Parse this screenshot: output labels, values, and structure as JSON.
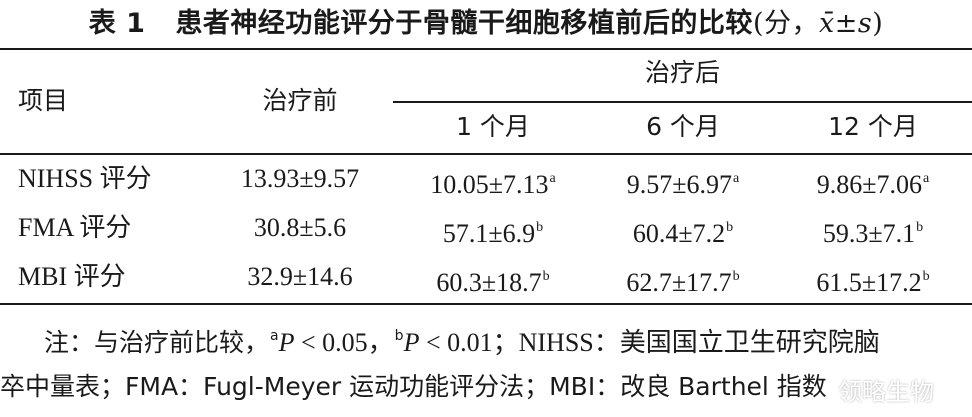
{
  "title": {
    "label": "表 1",
    "text": "患者神经功能评分于骨髓干细胞移植前后的比较",
    "unit_open": "(分，",
    "unit_stat": "x̄±s",
    "unit_close": ")"
  },
  "header": {
    "item": "项目",
    "before": "治疗前",
    "after": "治疗后",
    "after_sub": [
      "1 个月",
      "6 个月",
      "12 个月"
    ]
  },
  "rows": [
    {
      "name": "NIHSS 评分",
      "before": "13.93±9.57",
      "m1": "10.05±7.13",
      "m1_sup": "a",
      "m6": "9.57±6.97",
      "m6_sup": "a",
      "m12": "9.86±7.06",
      "m12_sup": "a"
    },
    {
      "name": "FMA 评分",
      "before": "30.8±5.6",
      "m1": "57.1±6.9",
      "m1_sup": "b",
      "m6": "60.4±7.2",
      "m6_sup": "b",
      "m12": "59.3±7.1",
      "m12_sup": "b"
    },
    {
      "name": "MBI 评分",
      "before": "32.9±14.6",
      "m1": "60.3±18.7",
      "m1_sup": "b",
      "m6": "62.7±17.7",
      "m6_sup": "b",
      "m12": "61.5±17.2",
      "m12_sup": "b"
    }
  ],
  "note": {
    "prefix": "注：与治疗前比较，",
    "sup_a": "a",
    "p_a": "P",
    "cmp_a": " < 0.05，",
    "sup_b": "b",
    "p_b": "P",
    "cmp_b": " < 0.01；NIHSS：美国国立卫生研究院脑",
    "line2": "卒中量表；FMA：Fugl-Meyer 运动功能评分法；MBI：改良 Barthel 指数"
  },
  "watermark": "领略生物"
}
